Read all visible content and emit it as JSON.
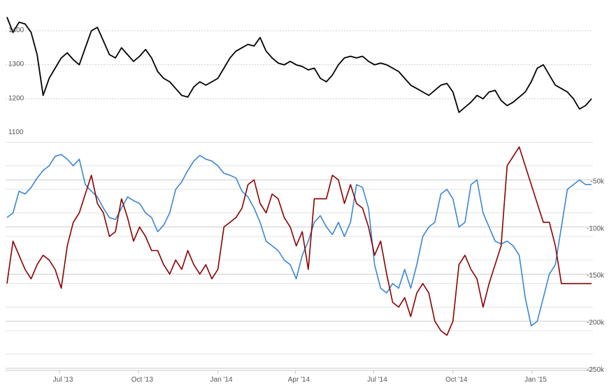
{
  "chart_data": [
    {
      "type": "line",
      "title": "",
      "xlabel": "",
      "ylabel": "",
      "ylim": [
        1100,
        1400
      ],
      "y_ticks": [
        "1100",
        "1200",
        "1300",
        "1400"
      ],
      "y_tick_values": [
        1100,
        1200,
        1300,
        1400
      ],
      "grid": true,
      "colors": {
        "line": "#000000",
        "grid": "#cccccc"
      },
      "series": [
        {
          "x": [
            "2013-05-01",
            "2013-05-08",
            "2013-05-15",
            "2013-05-22",
            "2013-05-29",
            "2013-06-05",
            "2013-06-12",
            "2013-06-19",
            "2013-06-26",
            "2013-07-03",
            "2013-07-10",
            "2013-07-17",
            "2013-07-24",
            "2013-07-31",
            "2013-08-07",
            "2013-08-14",
            "2013-08-21",
            "2013-08-28",
            "2013-09-04",
            "2013-09-11",
            "2013-09-18",
            "2013-09-25",
            "2013-10-02",
            "2013-10-09",
            "2013-10-16",
            "2013-10-23",
            "2013-10-30",
            "2013-11-06",
            "2013-11-13",
            "2013-11-20",
            "2013-11-27",
            "2013-12-04",
            "2013-12-11",
            "2013-12-18",
            "2013-12-25",
            "2014-01-01",
            "2014-01-08",
            "2014-01-15",
            "2014-01-22",
            "2014-01-29",
            "2014-02-05",
            "2014-02-12",
            "2014-02-19",
            "2014-02-26",
            "2014-03-05",
            "2014-03-12",
            "2014-03-19",
            "2014-03-26",
            "2014-04-02",
            "2014-04-09",
            "2014-04-16",
            "2014-04-23",
            "2014-04-30",
            "2014-05-07",
            "2014-05-14",
            "2014-05-21",
            "2014-05-28",
            "2014-06-04",
            "2014-06-11",
            "2014-06-18",
            "2014-06-25",
            "2014-07-02",
            "2014-07-09",
            "2014-07-16",
            "2014-07-23",
            "2014-07-30",
            "2014-08-06",
            "2014-08-13",
            "2014-08-20",
            "2014-08-27",
            "2014-09-03",
            "2014-09-10",
            "2014-09-17",
            "2014-09-24",
            "2014-10-01",
            "2014-10-08",
            "2014-10-15",
            "2014-10-22",
            "2014-10-29",
            "2014-11-05",
            "2014-11-12",
            "2014-11-19",
            "2014-11-26",
            "2014-12-03",
            "2014-12-10",
            "2014-12-17",
            "2014-12-24",
            "2014-12-31",
            "2015-01-07",
            "2015-01-14",
            "2015-01-21",
            "2015-01-28",
            "2015-02-04",
            "2015-02-11",
            "2015-02-18",
            "2015-02-25",
            "2015-03-04",
            "2015-03-11"
          ],
          "values": [
            1440,
            1395,
            1425,
            1420,
            1395,
            1330,
            1210,
            1260,
            1290,
            1320,
            1335,
            1315,
            1300,
            1350,
            1400,
            1410,
            1370,
            1330,
            1320,
            1350,
            1330,
            1310,
            1325,
            1345,
            1320,
            1280,
            1260,
            1250,
            1230,
            1210,
            1205,
            1235,
            1250,
            1240,
            1250,
            1260,
            1290,
            1320,
            1340,
            1350,
            1360,
            1355,
            1380,
            1340,
            1320,
            1305,
            1300,
            1310,
            1300,
            1295,
            1285,
            1290,
            1260,
            1250,
            1270,
            1300,
            1320,
            1325,
            1320,
            1325,
            1310,
            1300,
            1305,
            1300,
            1290,
            1280,
            1260,
            1240,
            1230,
            1220,
            1210,
            1225,
            1240,
            1245,
            1220,
            1160,
            1175,
            1190,
            1210,
            1200,
            1220,
            1225,
            1195,
            1180,
            1190,
            1205,
            1220,
            1250,
            1290,
            1300,
            1270,
            1240,
            1230,
            1220,
            1200,
            1170,
            1180,
            1200
          ]
        }
      ]
    },
    {
      "type": "line",
      "title": "",
      "xlabel": "",
      "ylabel": "",
      "ylim": [
        -250000,
        0
      ],
      "y_ticks": [
        "-50k",
        "-100k",
        "-150k",
        "-200k",
        "-250k"
      ],
      "y_tick_values": [
        -50000,
        -100000,
        -150000,
        -200000,
        -250000
      ],
      "x_ticks": [
        "Jul '13",
        "Oct '13",
        "Jan '14",
        "Apr '14",
        "Jul '14",
        "Oct '14",
        "Jan '15"
      ],
      "x_tick_values": [
        "2013-07-01",
        "2013-10-01",
        "2014-01-01",
        "2014-04-01",
        "2014-07-01",
        "2014-10-01",
        "2015-01-01"
      ],
      "grid": true,
      "colors": {
        "grid": "#cccccc"
      },
      "series": [
        {
          "color": "#3a87d1",
          "x": [
            "2013-05-01",
            "2013-05-08",
            "2013-05-15",
            "2013-05-22",
            "2013-05-29",
            "2013-06-05",
            "2013-06-12",
            "2013-06-19",
            "2013-06-26",
            "2013-07-03",
            "2013-07-10",
            "2013-07-17",
            "2013-07-24",
            "2013-07-31",
            "2013-08-07",
            "2013-08-14",
            "2013-08-21",
            "2013-08-28",
            "2013-09-04",
            "2013-09-11",
            "2013-09-18",
            "2013-09-25",
            "2013-10-02",
            "2013-10-09",
            "2013-10-16",
            "2013-10-23",
            "2013-10-30",
            "2013-11-06",
            "2013-11-13",
            "2013-11-20",
            "2013-11-27",
            "2013-12-04",
            "2013-12-11",
            "2013-12-18",
            "2013-12-25",
            "2014-01-01",
            "2014-01-08",
            "2014-01-15",
            "2014-01-22",
            "2014-01-29",
            "2014-02-05",
            "2014-02-12",
            "2014-02-19",
            "2014-02-26",
            "2014-03-05",
            "2014-03-12",
            "2014-03-19",
            "2014-03-26",
            "2014-04-02",
            "2014-04-09",
            "2014-04-16",
            "2014-04-23",
            "2014-04-30",
            "2014-05-07",
            "2014-05-14",
            "2014-05-21",
            "2014-05-28",
            "2014-06-04",
            "2014-06-11",
            "2014-06-18",
            "2014-06-25",
            "2014-07-02",
            "2014-07-09",
            "2014-07-16",
            "2014-07-23",
            "2014-07-30",
            "2014-08-06",
            "2014-08-13",
            "2014-08-20",
            "2014-08-27",
            "2014-09-03",
            "2014-09-10",
            "2014-09-17",
            "2014-09-24",
            "2014-10-01",
            "2014-10-08",
            "2014-10-15",
            "2014-10-22",
            "2014-10-29",
            "2014-11-05",
            "2014-11-12",
            "2014-11-19",
            "2014-11-26",
            "2014-12-03",
            "2014-12-10",
            "2014-12-17",
            "2014-12-24",
            "2014-12-31",
            "2015-01-07",
            "2015-01-14",
            "2015-01-21",
            "2015-01-28",
            "2015-02-04",
            "2015-02-11",
            "2015-02-18",
            "2015-02-25",
            "2015-03-04",
            "2015-03-11"
          ],
          "values": [
            -90000,
            -85000,
            -62000,
            -65000,
            -58000,
            -48000,
            -40000,
            -35000,
            -25000,
            -23000,
            -28000,
            -35000,
            -28000,
            -55000,
            -62000,
            -68000,
            -80000,
            -90000,
            -92000,
            -80000,
            -68000,
            -72000,
            -75000,
            -85000,
            -90000,
            -105000,
            -98000,
            -85000,
            -60000,
            -52000,
            -40000,
            -30000,
            -24000,
            -28000,
            -30000,
            -35000,
            -43000,
            -45000,
            -48000,
            -62000,
            -68000,
            -80000,
            -95000,
            -115000,
            -120000,
            -125000,
            -135000,
            -140000,
            -155000,
            -130000,
            -115000,
            -95000,
            -88000,
            -100000,
            -108000,
            -95000,
            -110000,
            -95000,
            -55000,
            -58000,
            -80000,
            -140000,
            -165000,
            -170000,
            -160000,
            -165000,
            -145000,
            -165000,
            -140000,
            -110000,
            -100000,
            -95000,
            -65000,
            -60000,
            -70000,
            -100000,
            -95000,
            -55000,
            -50000,
            -85000,
            -100000,
            -115000,
            -118000,
            -115000,
            -120000,
            -130000,
            -175000,
            -205000,
            -200000,
            -175000,
            -150000,
            -140000,
            -100000,
            -60000,
            -55000,
            -50000,
            -55000,
            -55000
          ]
        },
        {
          "color": "#8b0000",
          "x": [
            "2013-05-01",
            "2013-05-08",
            "2013-05-15",
            "2013-05-22",
            "2013-05-29",
            "2013-06-05",
            "2013-06-12",
            "2013-06-19",
            "2013-06-26",
            "2013-07-03",
            "2013-07-10",
            "2013-07-17",
            "2013-07-24",
            "2013-07-31",
            "2013-08-07",
            "2013-08-14",
            "2013-08-21",
            "2013-08-28",
            "2013-09-04",
            "2013-09-11",
            "2013-09-18",
            "2013-09-25",
            "2013-10-02",
            "2013-10-09",
            "2013-10-16",
            "2013-10-23",
            "2013-10-30",
            "2013-11-06",
            "2013-11-13",
            "2013-11-20",
            "2013-11-27",
            "2013-12-04",
            "2013-12-11",
            "2013-12-18",
            "2013-12-25",
            "2014-01-01",
            "2014-01-08",
            "2014-01-15",
            "2014-01-22",
            "2014-01-29",
            "2014-02-05",
            "2014-02-12",
            "2014-02-19",
            "2014-02-26",
            "2014-03-05",
            "2014-03-12",
            "2014-03-19",
            "2014-03-26",
            "2014-04-02",
            "2014-04-09",
            "2014-04-16",
            "2014-04-23",
            "2014-04-30",
            "2014-05-07",
            "2014-05-14",
            "2014-05-21",
            "2014-05-28",
            "2014-06-04",
            "2014-06-11",
            "2014-06-18",
            "2014-06-25",
            "2014-07-02",
            "2014-07-09",
            "2014-07-16",
            "2014-07-23",
            "2014-07-30",
            "2014-08-06",
            "2014-08-13",
            "2014-08-20",
            "2014-08-27",
            "2014-09-03",
            "2014-09-10",
            "2014-09-17",
            "2014-09-24",
            "2014-10-01",
            "2014-10-08",
            "2014-10-15",
            "2014-10-22",
            "2014-10-29",
            "2014-11-05",
            "2014-11-12",
            "2014-11-19",
            "2014-11-26",
            "2014-12-03",
            "2014-12-10",
            "2014-12-17",
            "2014-12-24",
            "2014-12-31",
            "2015-01-07",
            "2015-01-14",
            "2015-01-21",
            "2015-01-28",
            "2015-02-04",
            "2015-02-11",
            "2015-02-18",
            "2015-02-25",
            "2015-03-04",
            "2015-03-11"
          ],
          "values": [
            -160000,
            -115000,
            -130000,
            -145000,
            -155000,
            -140000,
            -130000,
            -135000,
            -145000,
            -165000,
            -120000,
            -95000,
            -85000,
            -65000,
            -45000,
            -75000,
            -85000,
            -110000,
            -105000,
            -70000,
            -90000,
            -115000,
            -100000,
            -110000,
            -125000,
            -125000,
            -140000,
            -150000,
            -135000,
            -145000,
            -125000,
            -140000,
            -150000,
            -140000,
            -155000,
            -145000,
            -100000,
            -95000,
            -90000,
            -80000,
            -55000,
            -50000,
            -75000,
            -85000,
            -65000,
            -70000,
            -90000,
            -100000,
            -120000,
            -105000,
            -145000,
            -70000,
            -70000,
            -70000,
            -45000,
            -50000,
            -75000,
            -55000,
            -75000,
            -80000,
            -100000,
            -130000,
            -115000,
            -150000,
            -180000,
            -185000,
            -175000,
            -195000,
            -170000,
            -160000,
            -170000,
            -200000,
            -210000,
            -215000,
            -200000,
            -140000,
            -130000,
            -145000,
            -155000,
            -185000,
            -160000,
            -140000,
            -120000,
            -35000,
            -25000,
            -15000,
            -35000,
            -55000,
            -75000,
            -95000,
            -95000,
            -120000,
            -160000,
            -160000,
            -160000,
            -160000,
            -160000,
            -160000
          ]
        }
      ]
    }
  ]
}
